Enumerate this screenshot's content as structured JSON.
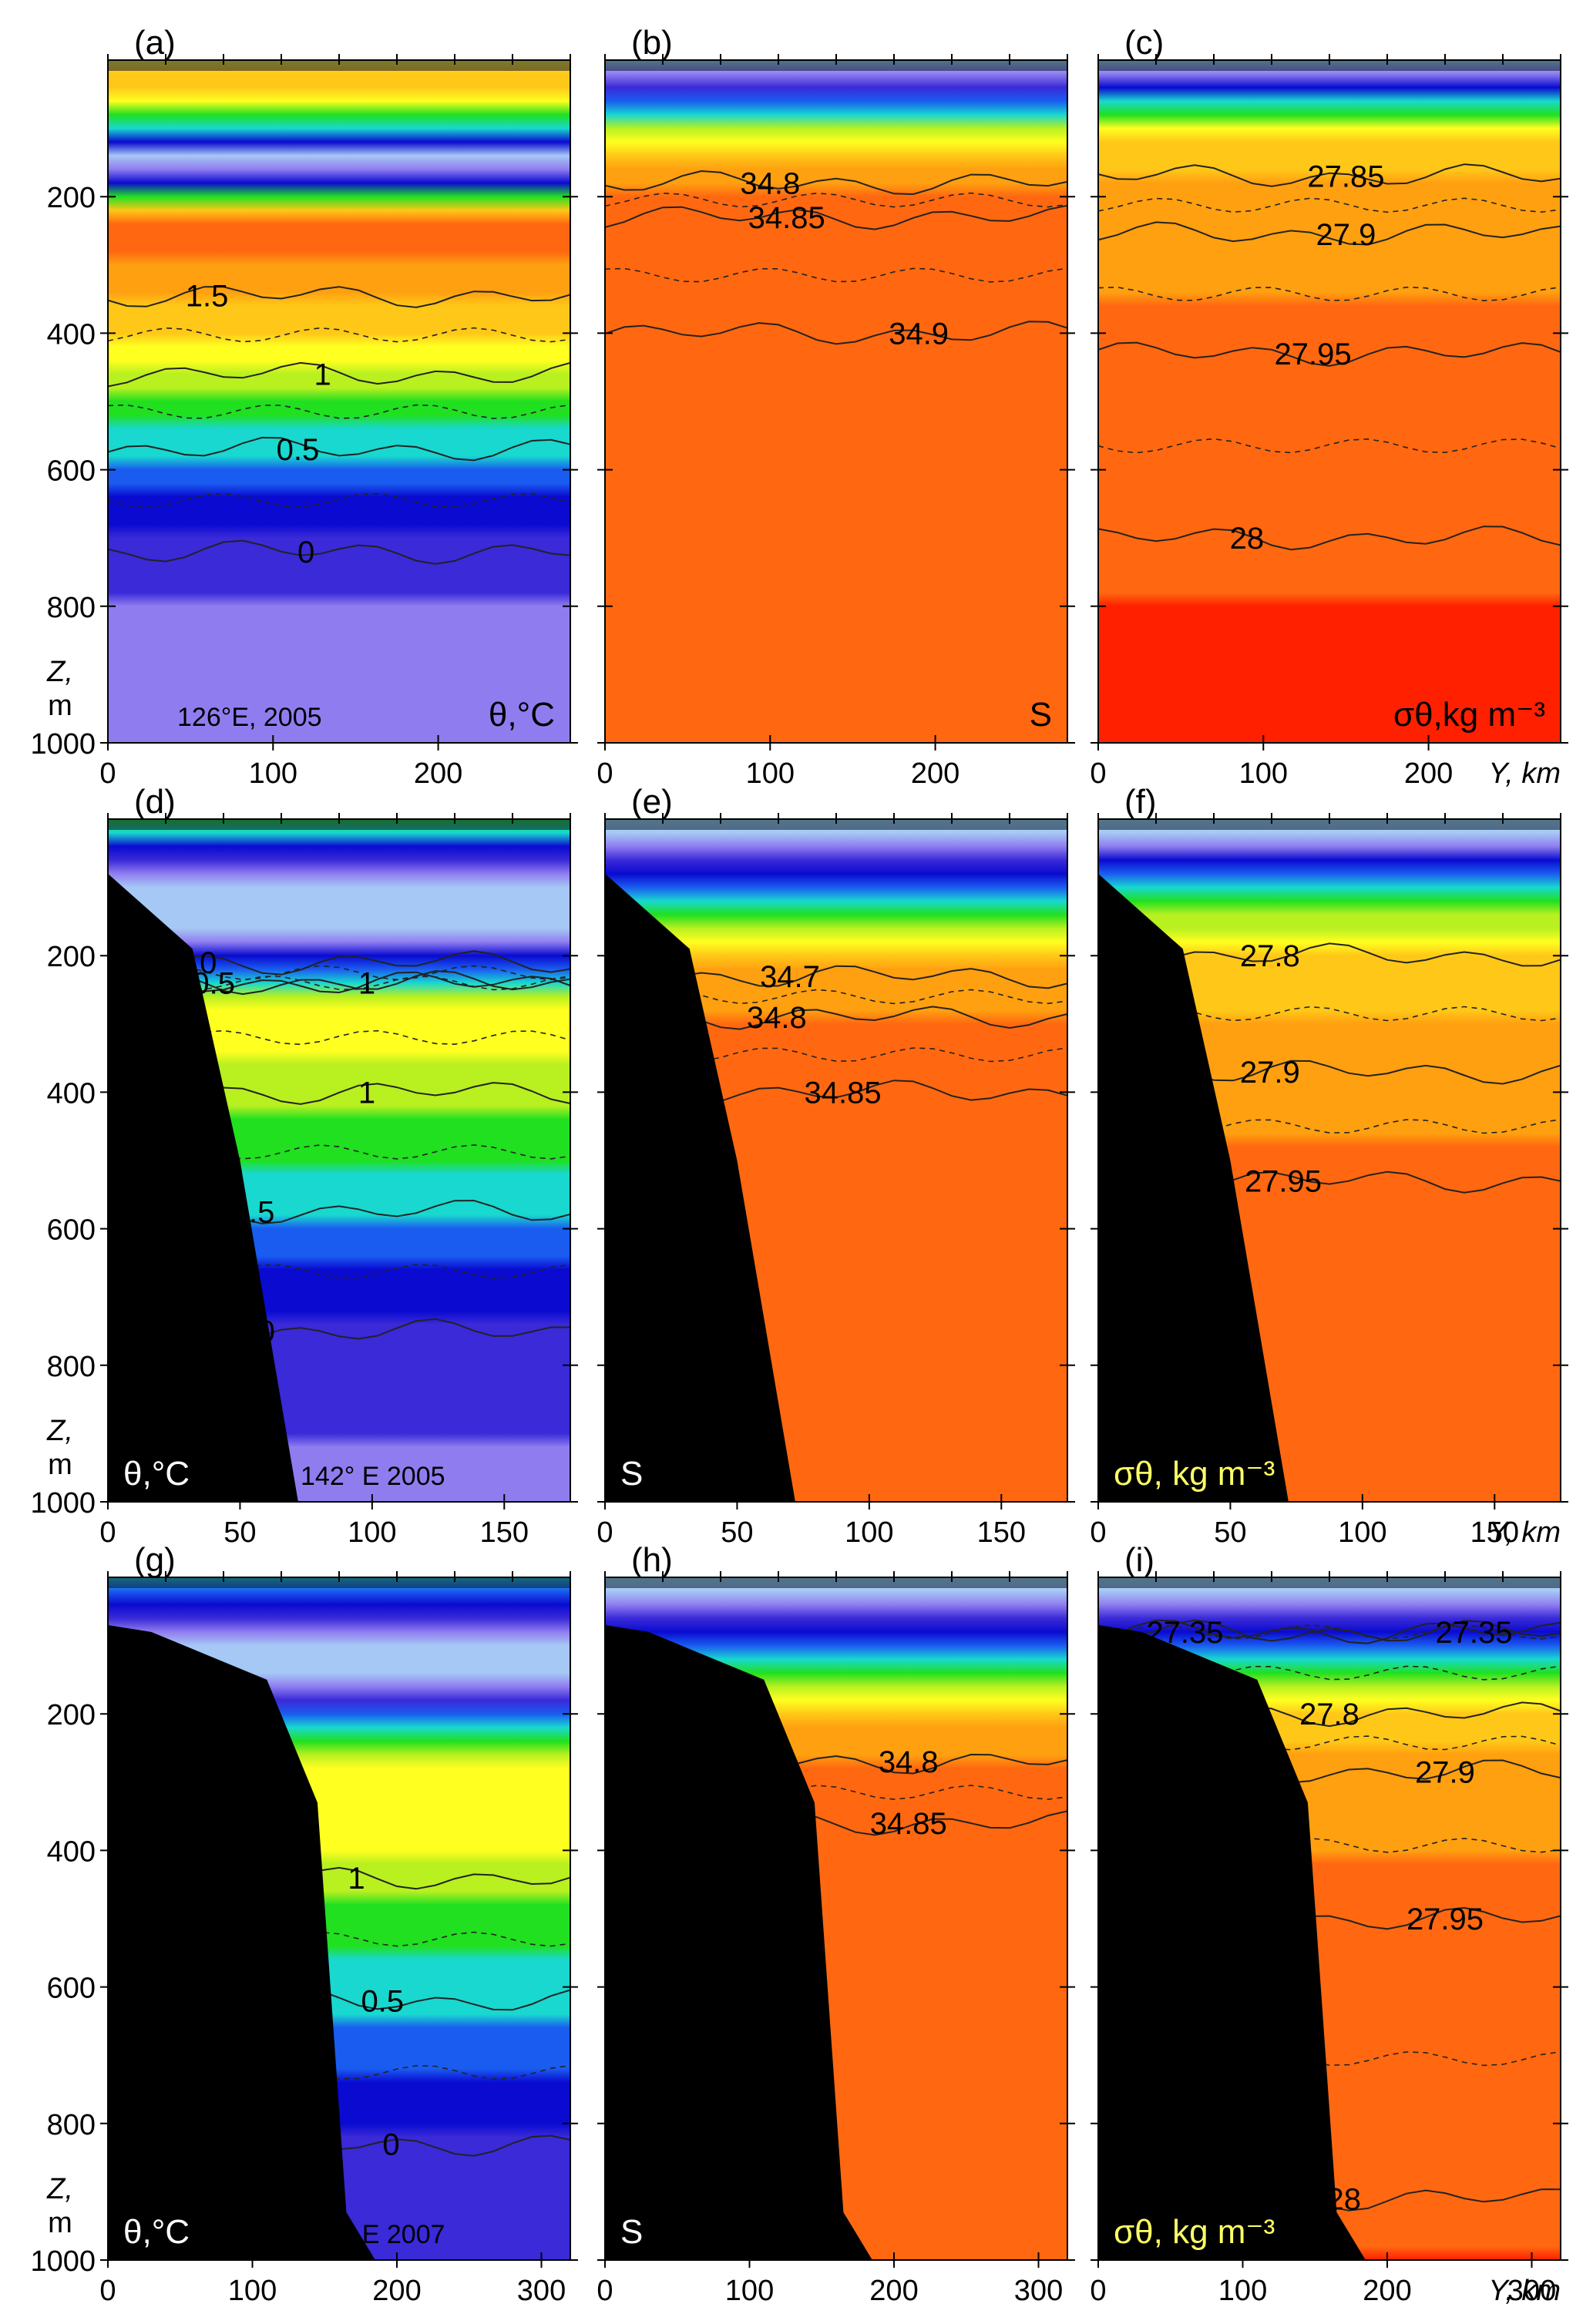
{
  "figure": {
    "zlabel": "Z,",
    "zunit": "m",
    "z_ticks": [
      200,
      400,
      600,
      800,
      1000
    ],
    "z_range": [
      0,
      1000
    ],
    "colors": {
      "land": "#000000",
      "contour": "#222222",
      "ylabel_sigma": "#ffff66",
      "text": "#000000"
    },
    "colormap": [
      "#9ef5f0",
      "#a6c8f5",
      "#8f7df0",
      "#3a2ad8",
      "#0a0ad0",
      "#1a5cf0",
      "#18d8d0",
      "#20e020",
      "#b8f020",
      "#ffff20",
      "#ffc818",
      "#ffa010",
      "#ff6810",
      "#ff2000"
    ]
  },
  "chart_data": [
    {
      "type": "heatmap",
      "panel": "(a)",
      "variable": "theta",
      "label": "θ,°C",
      "annotation": "126°E, 2005",
      "xlim": [
        0,
        280
      ],
      "x_ticks": [
        0,
        100,
        200
      ],
      "ylabel_x": "",
      "isolines": [
        {
          "value": "1.5",
          "x": 60,
          "z": 345
        },
        {
          "value": "1",
          "x": 130,
          "z": 460
        },
        {
          "value": "0.5",
          "x": 115,
          "z": 570
        },
        {
          "value": "0",
          "x": 120,
          "z": 720
        }
      ],
      "profile": [
        [
          0,
          1.2
        ],
        [
          30,
          1.6
        ],
        [
          100,
          0.5
        ],
        [
          140,
          -0.3
        ],
        [
          170,
          -0.2
        ],
        [
          230,
          1.8
        ],
        [
          300,
          1.7
        ],
        [
          400,
          1.3
        ],
        [
          470,
          1.0
        ],
        [
          550,
          0.6
        ],
        [
          640,
          0.3
        ],
        [
          720,
          0.0
        ],
        [
          850,
          -0.2
        ],
        [
          1000,
          -0.3
        ]
      ]
    },
    {
      "type": "heatmap",
      "panel": "(b)",
      "variable": "salinity",
      "label": "S",
      "annotation": "",
      "xlim": [
        0,
        280
      ],
      "x_ticks": [
        0,
        100,
        200
      ],
      "ylabel_x": "",
      "isolines": [
        {
          "value": "34.8",
          "x": 100,
          "z": 180
        },
        {
          "value": "34.85",
          "x": 110,
          "z": 230
        },
        {
          "value": "34.9",
          "x": 190,
          "z": 400
        }
      ],
      "profile": [
        [
          0,
          33.9
        ],
        [
          60,
          34.3
        ],
        [
          120,
          34.6
        ],
        [
          180,
          34.8
        ],
        [
          240,
          34.86
        ],
        [
          300,
          34.88
        ],
        [
          500,
          34.88
        ],
        [
          1000,
          34.87
        ]
      ]
    },
    {
      "type": "heatmap",
      "panel": "(c)",
      "variable": "sigma",
      "label": "σθ,kg m⁻³",
      "annotation": "",
      "xlim": [
        0,
        280
      ],
      "x_ticks": [
        0,
        100,
        200
      ],
      "ylabel_x": "Y, km",
      "isolines": [
        {
          "value": "27.85",
          "x": 150,
          "z": 170
        },
        {
          "value": "27.9",
          "x": 150,
          "z": 255
        },
        {
          "value": "27.95",
          "x": 130,
          "z": 430
        },
        {
          "value": "28",
          "x": 90,
          "z": 700
        }
      ],
      "profile": [
        [
          0,
          27.0
        ],
        [
          60,
          27.5
        ],
        [
          120,
          27.78
        ],
        [
          180,
          27.86
        ],
        [
          260,
          27.9
        ],
        [
          420,
          27.95
        ],
        [
          700,
          28.0
        ],
        [
          1000,
          28.03
        ]
      ]
    },
    {
      "type": "heatmap",
      "panel": "(d)",
      "variable": "theta",
      "label": "θ,°C",
      "annotation": "142° E 2005",
      "xlim": [
        0,
        175
      ],
      "x_ticks": [
        0,
        50,
        100,
        150
      ],
      "ylabel_x": "",
      "isolines": [
        {
          "value": "0",
          "x": 38,
          "z": 210
        },
        {
          "value": "0.5",
          "x": 40,
          "z": 240
        },
        {
          "value": "1",
          "x": 98,
          "z": 240
        },
        {
          "value": "1",
          "x": 98,
          "z": 400
        },
        {
          "value": "0.5",
          "x": 55,
          "z": 575
        },
        {
          "value": "0",
          "x": 60,
          "z": 750
        }
      ],
      "profile": [
        [
          0,
          0.8
        ],
        [
          40,
          0.2
        ],
        [
          110,
          -0.5
        ],
        [
          170,
          -0.3
        ],
        [
          200,
          0.2
        ],
        [
          280,
          1.2
        ],
        [
          400,
          1.0
        ],
        [
          560,
          0.6
        ],
        [
          720,
          0.1
        ],
        [
          1000,
          -0.2
        ]
      ],
      "shelf": [
        [
          0,
          80
        ],
        [
          32,
          190
        ],
        [
          50,
          500
        ],
        [
          72,
          1000
        ]
      ]
    },
    {
      "type": "heatmap",
      "panel": "(e)",
      "variable": "salinity",
      "label": "S",
      "annotation": "",
      "xlim": [
        0,
        175
      ],
      "x_ticks": [
        0,
        50,
        100,
        150
      ],
      "ylabel_x": "",
      "isolines": [
        {
          "value": "34.7",
          "x": 70,
          "z": 230
        },
        {
          "value": "34.8",
          "x": 65,
          "z": 290
        },
        {
          "value": "34.85",
          "x": 90,
          "z": 400
        }
      ],
      "profile": [
        [
          0,
          33.9
        ],
        [
          100,
          34.3
        ],
        [
          200,
          34.7
        ],
        [
          300,
          34.82
        ],
        [
          400,
          34.86
        ],
        [
          1000,
          34.86
        ]
      ],
      "shelf": [
        [
          0,
          80
        ],
        [
          32,
          190
        ],
        [
          50,
          500
        ],
        [
          72,
          1000
        ]
      ]
    },
    {
      "type": "heatmap",
      "panel": "(f)",
      "variable": "sigma",
      "label": "σθ, kg m⁻³",
      "annotation": "",
      "xlim": [
        0,
        175
      ],
      "x_ticks": [
        0,
        50,
        100,
        150
      ],
      "ylabel_x": "Y, km",
      "isolines": [
        {
          "value": "27.8",
          "x": 65,
          "z": 200
        },
        {
          "value": "27.9",
          "x": 65,
          "z": 370
        },
        {
          "value": "27.95",
          "x": 70,
          "z": 530
        }
      ],
      "profile": [
        [
          0,
          27.0
        ],
        [
          100,
          27.5
        ],
        [
          200,
          27.8
        ],
        [
          370,
          27.9
        ],
        [
          540,
          27.95
        ],
        [
          1000,
          27.98
        ]
      ],
      "shelf": [
        [
          0,
          80
        ],
        [
          32,
          190
        ],
        [
          50,
          500
        ],
        [
          72,
          1000
        ]
      ]
    },
    {
      "type": "heatmap",
      "panel": "(g)",
      "variable": "theta",
      "label": "θ,°C",
      "annotation": "159° E 2007",
      "xlim": [
        0,
        320
      ],
      "x_ticks": [
        0,
        100,
        200,
        300
      ],
      "ylabel_x": "",
      "isolines": [
        {
          "value": "1",
          "x": 172,
          "z": 440
        },
        {
          "value": "0.5",
          "x": 190,
          "z": 620
        },
        {
          "value": "0",
          "x": 196,
          "z": 830
        }
      ],
      "profile": [
        [
          0,
          0.6
        ],
        [
          40,
          0.1
        ],
        [
          100,
          -0.4
        ],
        [
          160,
          -0.3
        ],
        [
          210,
          0.6
        ],
        [
          290,
          1.3
        ],
        [
          400,
          1.1
        ],
        [
          600,
          0.6
        ],
        [
          820,
          0.05
        ],
        [
          1000,
          -0.1
        ]
      ],
      "shelf": [
        [
          0,
          70
        ],
        [
          30,
          80
        ],
        [
          110,
          150
        ],
        [
          145,
          330
        ],
        [
          165,
          930
        ],
        [
          185,
          1000
        ]
      ]
    },
    {
      "type": "heatmap",
      "panel": "(h)",
      "variable": "salinity",
      "label": "S",
      "annotation": "",
      "xlim": [
        0,
        320
      ],
      "x_ticks": [
        0,
        100,
        200,
        300
      ],
      "ylabel_x": "",
      "isolines": [
        {
          "value": "34.8",
          "x": 210,
          "z": 270
        },
        {
          "value": "34.85",
          "x": 210,
          "z": 360
        }
      ],
      "profile": [
        [
          0,
          33.9
        ],
        [
          80,
          34.2
        ],
        [
          200,
          34.7
        ],
        [
          270,
          34.8
        ],
        [
          360,
          34.86
        ],
        [
          1000,
          34.87
        ]
      ],
      "shelf": [
        [
          0,
          70
        ],
        [
          30,
          80
        ],
        [
          110,
          150
        ],
        [
          145,
          330
        ],
        [
          165,
          930
        ],
        [
          185,
          1000
        ]
      ]
    },
    {
      "type": "heatmap",
      "panel": "(i)",
      "variable": "sigma",
      "label": "σθ, kg m⁻³",
      "annotation": "",
      "xlim": [
        0,
        320
      ],
      "x_ticks": [
        0,
        100,
        200,
        300
      ],
      "ylabel_x": "Y, km",
      "isolines": [
        {
          "value": "27.35",
          "x": 60,
          "z": 80
        },
        {
          "value": "27.35",
          "x": 260,
          "z": 80
        },
        {
          "value": "27.8",
          "x": 160,
          "z": 200
        },
        {
          "value": "27.9",
          "x": 240,
          "z": 285
        },
        {
          "value": "27.95",
          "x": 240,
          "z": 500
        },
        {
          "value": "28",
          "x": 170,
          "z": 910
        }
      ],
      "profile": [
        [
          0,
          27.0
        ],
        [
          80,
          27.35
        ],
        [
          200,
          27.8
        ],
        [
          290,
          27.9
        ],
        [
          500,
          27.95
        ],
        [
          900,
          28.0
        ],
        [
          1000,
          28.01
        ]
      ],
      "shelf": [
        [
          0,
          70
        ],
        [
          30,
          80
        ],
        [
          110,
          150
        ],
        [
          145,
          330
        ],
        [
          165,
          930
        ],
        [
          185,
          1000
        ]
      ]
    }
  ]
}
